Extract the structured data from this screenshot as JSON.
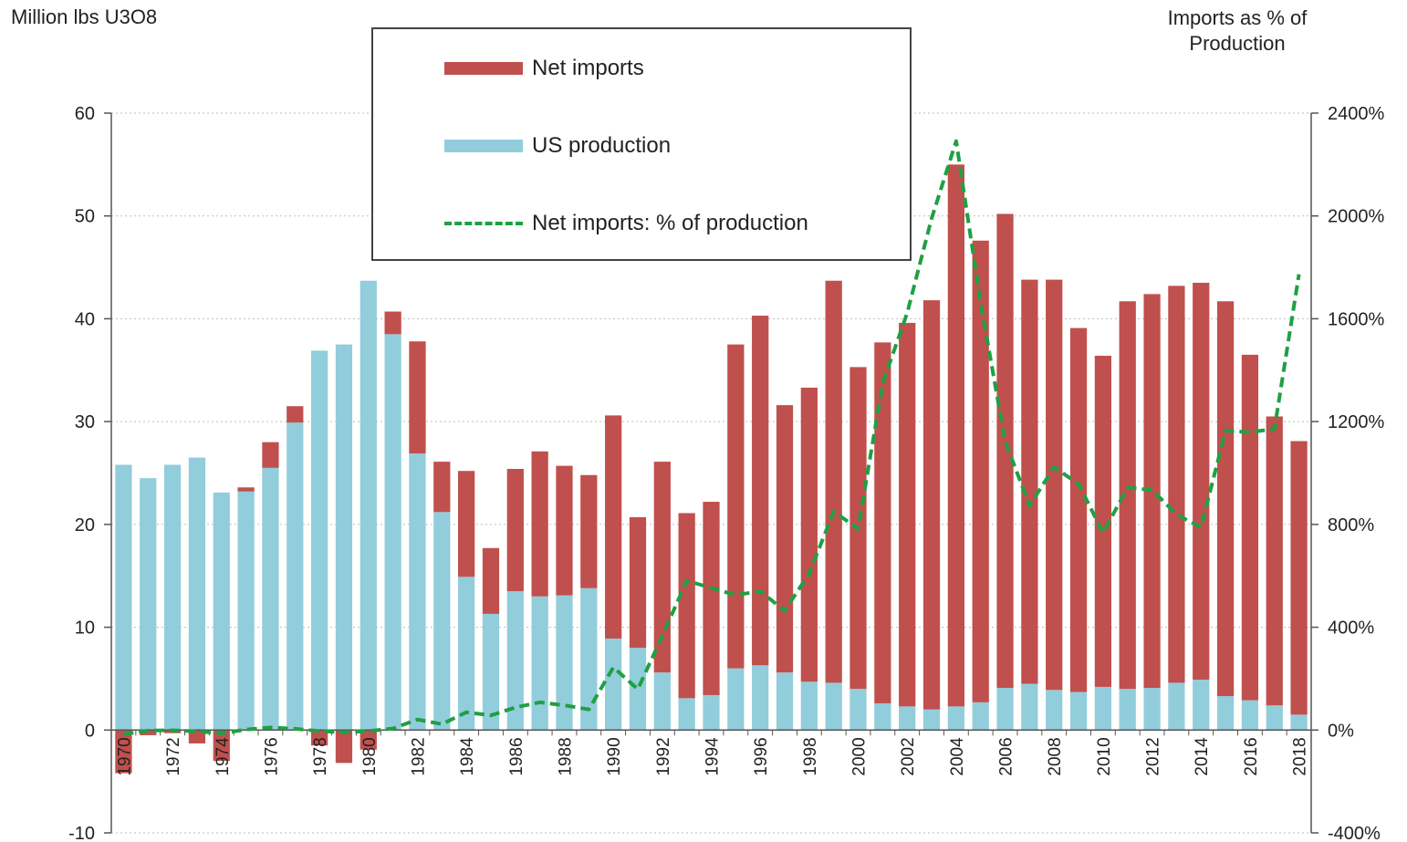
{
  "chart_data": {
    "type": "bar",
    "stacked": true,
    "ylabel": "Million lbs U3O8",
    "ylabel_right": "Imports as % of Production",
    "ylim": [
      -10,
      60
    ],
    "y_ticks": [
      -10,
      0,
      10,
      20,
      30,
      40,
      50,
      60
    ],
    "ylim_right": [
      -400,
      2400
    ],
    "y_ticks_right": [
      "-400%",
      "0%",
      "400%",
      "800%",
      "1200%",
      "1600%",
      "2000%",
      "2400%"
    ],
    "x": [
      1970,
      1971,
      1972,
      1973,
      1974,
      1975,
      1976,
      1977,
      1978,
      1979,
      1980,
      1981,
      1982,
      1983,
      1984,
      1985,
      1986,
      1987,
      1988,
      1989,
      1990,
      1991,
      1992,
      1993,
      1994,
      1995,
      1996,
      1997,
      1998,
      1999,
      2000,
      2001,
      2002,
      2003,
      2004,
      2005,
      2006,
      2007,
      2008,
      2009,
      2010,
      2011,
      2012,
      2013,
      2014,
      2015,
      2016,
      2017,
      2018
    ],
    "x_tick_labels": [
      "1970",
      "1972",
      "1974",
      "1976",
      "1978",
      "1980",
      "1982",
      "1984",
      "1986",
      "1988",
      "1990",
      "1992",
      "1994",
      "1996",
      "1998",
      "2000",
      "2002",
      "2004",
      "2006",
      "2008",
      "2010",
      "2012",
      "2014",
      "2016",
      "2018"
    ],
    "legend_position": "top-center",
    "series": [
      {
        "name": "US production",
        "type": "bar",
        "color": "#92cddc",
        "values": [
          25.8,
          24.5,
          25.8,
          26.5,
          23.1,
          23.2,
          25.5,
          29.9,
          36.9,
          37.5,
          43.7,
          38.5,
          26.9,
          21.2,
          14.9,
          11.3,
          13.5,
          13.0,
          13.1,
          13.8,
          8.9,
          8.0,
          5.6,
          3.1,
          3.4,
          6.0,
          6.3,
          5.6,
          4.7,
          4.6,
          4.0,
          2.6,
          2.3,
          2.0,
          2.3,
          2.7,
          4.1,
          4.5,
          3.9,
          3.7,
          4.2,
          4.0,
          4.1,
          4.6,
          4.9,
          3.3,
          2.9,
          2.4,
          1.5
        ]
      },
      {
        "name": "Net imports",
        "type": "bar",
        "color": "#c0504d",
        "values": [
          -4.2,
          -0.5,
          -0.3,
          -1.3,
          -3.0,
          0.4,
          2.5,
          1.6,
          -1.5,
          -3.2,
          -1.9,
          2.2,
          10.9,
          4.9,
          10.3,
          6.4,
          11.9,
          14.1,
          12.6,
          11.0,
          21.7,
          12.7,
          20.5,
          18.0,
          18.8,
          31.5,
          34.0,
          26.0,
          28.6,
          39.1,
          31.3,
          35.1,
          37.3,
          39.8,
          52.7,
          44.9,
          46.1,
          39.3,
          39.9,
          35.4,
          32.2,
          37.7,
          38.3,
          38.6,
          38.6,
          38.4,
          33.6,
          28.1,
          26.6
        ]
      },
      {
        "name": "Net imports: % of production",
        "type": "line",
        "axis": "right",
        "color": "#1fa043",
        "values": [
          -16,
          -2,
          -1,
          -5,
          -13,
          2,
          10,
          5,
          -4,
          -9,
          -4,
          6,
          41,
          23,
          69,
          57,
          88,
          108,
          96,
          80,
          244,
          159,
          366,
          581,
          553,
          525,
          540,
          464,
          609,
          850,
          783,
          1350,
          1622,
          1990,
          2291,
          1663,
          1124,
          873,
          1023,
          957,
          767,
          943,
          934,
          839,
          788,
          1164,
          1159,
          1171,
          1773
        ]
      }
    ]
  }
}
